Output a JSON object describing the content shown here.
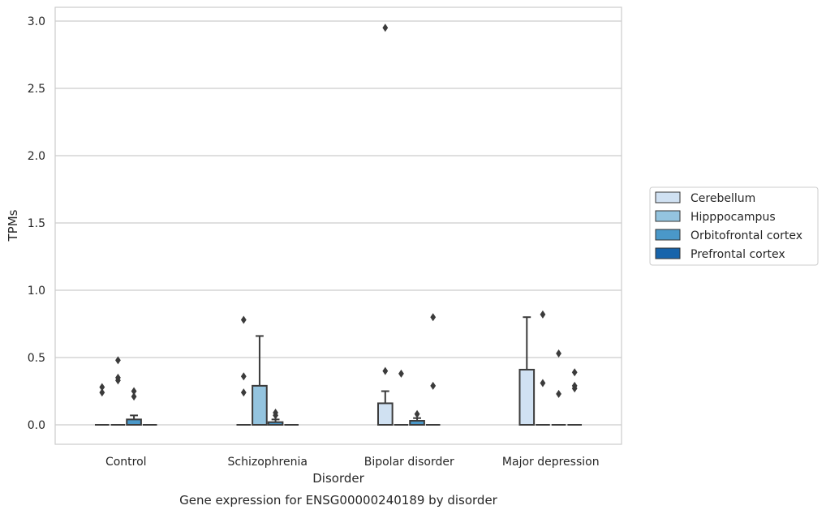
{
  "chart_data": {
    "type": "box",
    "title": "",
    "caption": "Gene expression for ENSG00000240189 by disorder",
    "xlabel": "Disorder",
    "ylabel": "TPMs",
    "ylim": [
      -0.15,
      3.1
    ],
    "yticks": [
      "0.0",
      "0.5",
      "1.0",
      "1.5",
      "2.0",
      "2.5",
      "3.0"
    ],
    "grid": "horizontal",
    "legend_placement": "right",
    "categories": [
      "Control",
      "Schizophrenia",
      "Bipolar disorder",
      "Major depression"
    ],
    "series": [
      {
        "name": "Cerebellum",
        "color": "#d0e1f2",
        "boxes": [
          {
            "q1": 0,
            "median": 0,
            "q3": 0,
            "whisker_low": 0,
            "whisker_high": 0,
            "outliers": [
              0.24,
              0.28
            ]
          },
          {
            "q1": 0,
            "median": 0,
            "q3": 0,
            "whisker_low": 0,
            "whisker_high": 0,
            "outliers": [
              0.24,
              0.36,
              0.78
            ]
          },
          {
            "q1": 0,
            "median": 0,
            "q3": 0.16,
            "whisker_low": 0,
            "whisker_high": 0.25,
            "outliers": [
              0.4,
              2.95
            ]
          },
          {
            "q1": 0,
            "median": 0,
            "q3": 0.41,
            "whisker_low": 0,
            "whisker_high": 0.8,
            "outliers": []
          }
        ]
      },
      {
        "name": "Hipppocampus",
        "color": "#94c4df",
        "boxes": [
          {
            "q1": 0,
            "median": 0,
            "q3": 0,
            "whisker_low": 0,
            "whisker_high": 0,
            "outliers": [
              0.33,
              0.35,
              0.48
            ]
          },
          {
            "q1": 0,
            "median": 0,
            "q3": 0.29,
            "whisker_low": 0,
            "whisker_high": 0.66,
            "outliers": []
          },
          {
            "q1": 0,
            "median": 0,
            "q3": 0,
            "whisker_low": 0,
            "whisker_high": 0,
            "outliers": [
              0.38
            ]
          },
          {
            "q1": 0,
            "median": 0,
            "q3": 0,
            "whisker_low": 0,
            "whisker_high": 0,
            "outliers": [
              0.31,
              0.82
            ]
          }
        ]
      },
      {
        "name": "Orbitofrontal cortex",
        "color": "#4a98c9",
        "boxes": [
          {
            "q1": 0,
            "median": 0,
            "q3": 0.04,
            "whisker_low": 0,
            "whisker_high": 0.07,
            "outliers": [
              0.21,
              0.25
            ]
          },
          {
            "q1": 0,
            "median": 0,
            "q3": 0.02,
            "whisker_low": 0,
            "whisker_high": 0.04,
            "outliers": [
              0.07,
              0.09
            ]
          },
          {
            "q1": 0,
            "median": 0,
            "q3": 0.03,
            "whisker_low": 0,
            "whisker_high": 0.05,
            "outliers": [
              0.08
            ]
          },
          {
            "q1": 0,
            "median": 0,
            "q3": 0,
            "whisker_low": 0,
            "whisker_high": 0,
            "outliers": [
              0.23,
              0.53
            ]
          }
        ]
      },
      {
        "name": "Prefrontal cortex",
        "color": "#1764ab",
        "boxes": [
          {
            "q1": 0,
            "median": 0,
            "q3": 0,
            "whisker_low": 0,
            "whisker_high": 0,
            "outliers": []
          },
          {
            "q1": 0,
            "median": 0,
            "q3": 0,
            "whisker_low": 0,
            "whisker_high": 0,
            "outliers": []
          },
          {
            "q1": 0,
            "median": 0,
            "q3": 0,
            "whisker_low": 0,
            "whisker_high": 0,
            "outliers": [
              0.29,
              0.8
            ]
          },
          {
            "q1": 0,
            "median": 0,
            "q3": 0,
            "whisker_low": 0,
            "whisker_high": 0,
            "outliers": [
              0.27,
              0.29,
              0.39
            ]
          }
        ]
      }
    ]
  }
}
